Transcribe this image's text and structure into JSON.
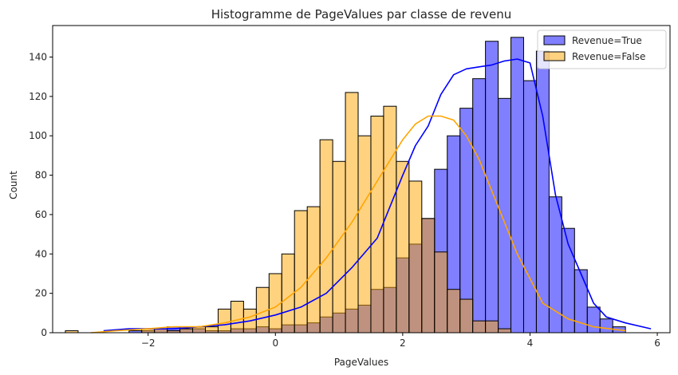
{
  "chart_data": {
    "type": "histogram",
    "title": "Histogramme de PageValues par classe de revenu",
    "xlabel": "PageValues",
    "ylabel": "Count",
    "xlim": [
      -3.5,
      6.2
    ],
    "ylim": [
      0,
      156
    ],
    "xticks": [
      -2,
      0,
      2,
      4,
      6
    ],
    "yticks": [
      0,
      20,
      40,
      60,
      80,
      100,
      120,
      140
    ],
    "legend_position": "top-right",
    "bin_start": -3.3,
    "bin_width": 0.2,
    "series": [
      {
        "name": "Revenue=True",
        "color": "#0000ff",
        "counts": [
          0,
          0,
          0,
          0,
          0,
          1,
          1,
          2,
          3,
          2,
          2,
          1,
          1,
          2,
          2,
          3,
          2,
          4,
          4,
          5,
          8,
          10,
          12,
          14,
          22,
          23,
          38,
          45,
          58,
          83,
          100,
          114,
          129,
          148,
          119,
          150,
          128,
          143,
          69,
          53,
          32,
          13,
          7,
          3
        ],
        "kde_x": [
          -2.7,
          -2.3,
          -2.0,
          -1.6,
          -1.2,
          -0.8,
          -0.4,
          0.0,
          0.4,
          0.8,
          1.2,
          1.6,
          2.0,
          2.2,
          2.4,
          2.6,
          2.8,
          3.0,
          3.2,
          3.4,
          3.6,
          3.8,
          4.0,
          4.2,
          4.4,
          4.6,
          4.8,
          5.0,
          5.2,
          5.5,
          5.9
        ],
        "kde_y": [
          1,
          2,
          2,
          2,
          3,
          4,
          6,
          9,
          13,
          20,
          33,
          48,
          80,
          95,
          105,
          121,
          131,
          134,
          135,
          136,
          138,
          139,
          137,
          110,
          70,
          45,
          30,
          15,
          8,
          5,
          2
        ]
      },
      {
        "name": "Revenue=False",
        "color": "#ffa500",
        "counts": [
          1,
          0,
          0,
          0,
          0,
          0,
          2,
          2,
          1,
          2,
          3,
          3,
          12,
          16,
          12,
          23,
          30,
          40,
          62,
          64,
          98,
          87,
          122,
          100,
          110,
          115,
          87,
          77,
          58,
          41,
          22,
          17,
          6,
          6,
          2,
          0,
          0,
          0,
          0,
          0,
          0,
          0,
          0,
          0
        ],
        "kde_x": [
          -2.9,
          -2.5,
          -2.0,
          -1.6,
          -1.2,
          -0.8,
          -0.4,
          0.0,
          0.4,
          0.8,
          1.2,
          1.6,
          2.0,
          2.2,
          2.4,
          2.6,
          2.8,
          3.0,
          3.2,
          3.4,
          3.8,
          4.2,
          4.6,
          5.0,
          5.5
        ],
        "kde_y": [
          0,
          1,
          2,
          3,
          3,
          5,
          8,
          13,
          23,
          38,
          56,
          77,
          98,
          106,
          110,
          110,
          108,
          100,
          88,
          72,
          40,
          15,
          7,
          3,
          1
        ]
      }
    ]
  }
}
